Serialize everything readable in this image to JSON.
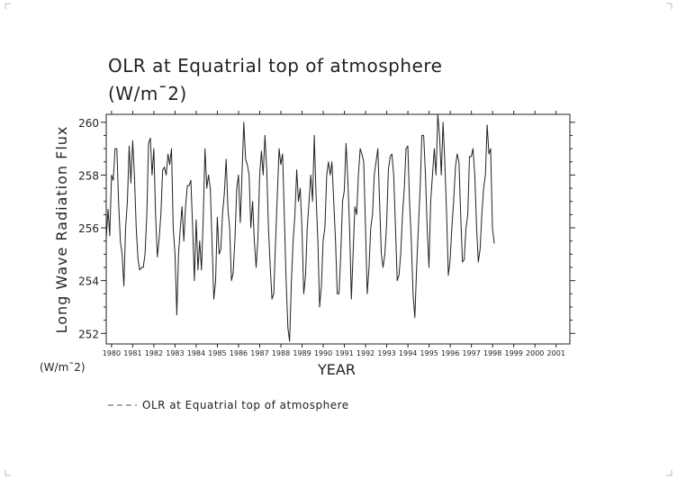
{
  "chart_data": {
    "type": "line",
    "title": "OLR at Equatrial top of atmosphere",
    "title_unit": "(W/m¯2)",
    "xlabel": "YEAR",
    "ylabel": "Long Wave Radiation Flux",
    "yunit": "(W/m¯2)",
    "xlim": [
      1979.75,
      2001.65
    ],
    "ylim": [
      251.6,
      260.3
    ],
    "grid": false,
    "legend_position": "bottom-left",
    "y_ticks": [
      252,
      254,
      256,
      258,
      260
    ],
    "x_ticks": [
      "1980",
      "1981",
      "1982",
      "1983",
      "1984",
      "1985",
      "1986",
      "1987",
      "1988",
      "1989",
      "1990",
      "1991",
      "1992",
      "1993",
      "1994",
      "1995",
      "1996",
      "1997",
      "1998",
      "1999",
      "2000",
      "2001"
    ],
    "series": [
      {
        "name": "OLR at Equatrial top of atmosphere",
        "color": "#222222",
        "start_year": 1979.75,
        "step": 0.0833,
        "values": [
          255.6,
          256.7,
          255.7,
          258.0,
          257.8,
          259.0,
          259.0,
          257.0,
          255.5,
          255.0,
          253.8,
          256.0,
          257.0,
          259.1,
          257.7,
          259.3,
          258.0,
          256.0,
          254.8,
          254.4,
          254.5,
          254.5,
          255.0,
          256.5,
          259.2,
          259.4,
          258.0,
          259.0,
          256.5,
          254.9,
          255.6,
          256.5,
          258.2,
          258.3,
          258.0,
          258.8,
          258.4,
          259.0,
          256.0,
          255.0,
          252.7,
          255.0,
          256.0,
          256.8,
          255.5,
          256.8,
          257.6,
          257.6,
          257.8,
          256.0,
          254.0,
          256.3,
          254.4,
          255.5,
          254.4,
          256.3,
          259.0,
          257.5,
          258.0,
          257.5,
          255.5,
          253.3,
          254.0,
          256.4,
          255.0,
          255.2,
          256.6,
          257.3,
          258.6,
          256.7,
          256.0,
          254.0,
          254.3,
          255.6,
          257.5,
          258.0,
          256.2,
          258.0,
          260.0,
          258.6,
          258.4,
          258.0,
          256.0,
          257.0,
          255.5,
          254.5,
          255.6,
          258.0,
          258.9,
          258.0,
          259.5,
          258.2,
          256.0,
          254.5,
          253.3,
          253.5,
          255.5,
          257.2,
          259.0,
          258.4,
          258.8,
          256.5,
          254.0,
          252.2,
          251.7,
          254.0,
          255.5,
          256.5,
          258.2,
          257.0,
          257.5,
          256.0,
          253.5,
          254.2,
          256.0,
          257.0,
          258.0,
          257.0,
          259.5,
          257.2,
          255.5,
          253.0,
          253.8,
          255.5,
          256.0,
          258.0,
          258.5,
          258.0,
          258.5,
          257.0,
          255.5,
          253.5,
          253.5,
          255.0,
          257.0,
          257.4,
          259.2,
          257.8,
          256.0,
          253.3,
          255.0,
          256.8,
          256.5,
          258.0,
          259.0,
          258.8,
          258.5,
          256.0,
          253.5,
          254.5,
          256.0,
          256.5,
          258.0,
          258.5,
          259.0,
          257.0,
          255.0,
          254.5,
          255.0,
          256.2,
          258.2,
          258.7,
          258.8,
          258.0,
          256.0,
          254.0,
          254.2,
          255.0,
          256.5,
          257.5,
          259.0,
          259.1,
          257.0,
          255.5,
          253.5,
          252.6,
          254.5,
          256.0,
          257.5,
          259.5,
          259.5,
          258.0,
          256.0,
          254.5,
          257.0,
          258.0,
          259.0,
          258.0,
          260.3,
          259.5,
          258.0,
          260.0,
          258.5,
          256.5,
          254.2,
          254.8,
          256.0,
          257.0,
          258.3,
          258.8,
          258.5,
          256.5,
          254.7,
          254.8,
          256.0,
          256.5,
          258.7,
          258.7,
          259.0,
          258.0,
          256.0,
          254.7,
          255.2,
          256.5,
          257.5,
          258.0,
          259.9,
          258.8,
          259.0,
          256.0,
          255.4
        ]
      }
    ]
  },
  "legend": {
    "label": "OLR at Equatrial top of atmosphere"
  }
}
